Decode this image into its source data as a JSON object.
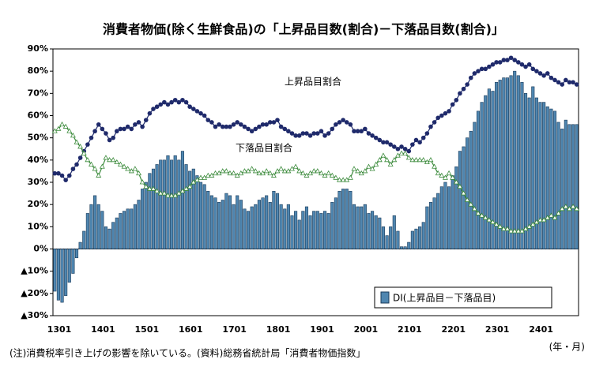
{
  "chart_data": {
    "type": "bar-line",
    "title": "消費者物価(除く生鮮食品)の「上昇品目数(割合)－下落品目数(割合)」",
    "note": "(注)消費税率引き上げの影響を除いている。(資料)総務省統計局「消費者物価指数」",
    "x_label": "(年・月)",
    "categories": [
      "1301",
      null,
      null,
      null,
      null,
      null,
      null,
      null,
      null,
      null,
      null,
      null,
      "1401",
      null,
      null,
      null,
      null,
      null,
      null,
      null,
      null,
      null,
      null,
      null,
      "1501",
      null,
      null,
      null,
      null,
      null,
      null,
      null,
      null,
      null,
      null,
      null,
      "1601",
      null,
      null,
      null,
      null,
      null,
      null,
      null,
      null,
      null,
      null,
      null,
      "1701",
      null,
      null,
      null,
      null,
      null,
      null,
      null,
      null,
      null,
      null,
      null,
      "1801",
      null,
      null,
      null,
      null,
      null,
      null,
      null,
      null,
      null,
      null,
      null,
      "1901",
      null,
      null,
      null,
      null,
      null,
      null,
      null,
      null,
      null,
      null,
      null,
      "2001",
      null,
      null,
      null,
      null,
      null,
      null,
      null,
      null,
      null,
      null,
      null,
      "2101",
      null,
      null,
      null,
      null,
      null,
      null,
      null,
      null,
      null,
      null,
      null,
      "2201",
      null,
      null,
      null,
      null,
      null,
      null,
      null,
      null,
      null,
      null,
      null,
      "2301",
      null,
      null,
      null,
      null,
      null,
      null,
      null,
      null,
      null,
      null,
      null,
      "2401",
      null,
      null,
      null,
      null,
      null,
      null,
      null,
      null,
      null,
      null,
      null
    ],
    "series": [
      {
        "name": "DI(上昇品目－下落品目)",
        "type": "bar",
        "color": "#4f86b0",
        "values": [
          -19,
          -23,
          -24,
          -21,
          -15,
          -11,
          -4,
          3,
          8,
          16,
          20,
          24,
          20,
          17,
          10,
          9,
          12,
          14,
          16,
          17,
          18,
          18,
          20,
          22,
          27,
          30,
          34,
          36,
          38,
          40,
          40,
          42,
          40,
          42,
          40,
          44,
          38,
          35,
          36,
          33,
          30,
          29,
          26,
          24,
          23,
          21,
          22,
          25,
          24,
          20,
          24,
          22,
          18,
          17,
          19,
          20,
          22,
          23,
          24,
          21,
          26,
          25,
          20,
          18,
          20,
          15,
          17,
          13,
          17,
          19,
          15,
          17,
          17,
          16,
          17,
          16,
          21,
          23,
          26,
          27,
          27,
          26,
          20,
          19,
          19,
          20,
          16,
          17,
          15,
          14,
          10,
          6,
          10,
          15,
          8,
          1,
          1,
          3,
          8,
          9,
          10,
          12,
          19,
          21,
          23,
          25,
          28,
          30,
          28,
          33,
          37,
          44,
          46,
          50,
          53,
          57,
          62,
          66,
          69,
          72,
          71,
          75,
          76,
          77,
          77,
          78,
          80,
          78,
          75,
          70,
          68,
          73,
          68,
          66,
          66,
          64,
          63,
          62,
          57,
          54,
          58,
          56,
          56,
          56
        ]
      },
      {
        "name": "上昇品目割合",
        "type": "line",
        "color": "#1f2a6b",
        "values": [
          34,
          34,
          33,
          31,
          33,
          36,
          38,
          41,
          44,
          47,
          50,
          53,
          56,
          54,
          52,
          49,
          50,
          53,
          54,
          54,
          55,
          54,
          56,
          57,
          55,
          58,
          61,
          63,
          64,
          65,
          66,
          65,
          66,
          67,
          66,
          67,
          66,
          64,
          63,
          62,
          61,
          60,
          58,
          57,
          55,
          56,
          55,
          55,
          55,
          56,
          57,
          56,
          55,
          54,
          53,
          54,
          55,
          56,
          56,
          57,
          57,
          58,
          55,
          54,
          53,
          52,
          51,
          51,
          52,
          52,
          51,
          52,
          52,
          53,
          51,
          52,
          54,
          56,
          57,
          58,
          57,
          56,
          53,
          53,
          53,
          54,
          52,
          51,
          50,
          49,
          48,
          48,
          47,
          46,
          45,
          46,
          45,
          44,
          47,
          49,
          48,
          50,
          52,
          55,
          57,
          59,
          60,
          61,
          62,
          65,
          67,
          70,
          72,
          74,
          77,
          79,
          80,
          81,
          81,
          82,
          83,
          84,
          84,
          85,
          85,
          86,
          85,
          84,
          83,
          82,
          83,
          81,
          80,
          79,
          78,
          79,
          77,
          76,
          75,
          74,
          76,
          75,
          75,
          74
        ]
      },
      {
        "name": "下落品目割合",
        "type": "line",
        "color": "#3b8a3b",
        "values": [
          53,
          54,
          56,
          55,
          53,
          51,
          48,
          46,
          43,
          40,
          38,
          36,
          33,
          37,
          41,
          40,
          40,
          39,
          38,
          37,
          36,
          35,
          36,
          34,
          30,
          28,
          27,
          27,
          26,
          25,
          25,
          24,
          24,
          24,
          25,
          26,
          27,
          28,
          30,
          31,
          32,
          32,
          33,
          33,
          34,
          34,
          35,
          35,
          34,
          34,
          33,
          34,
          35,
          35,
          36,
          35,
          34,
          34,
          35,
          34,
          33,
          35,
          36,
          35,
          35,
          36,
          37,
          35,
          34,
          33,
          34,
          35,
          35,
          34,
          33,
          34,
          33,
          32,
          31,
          31,
          31,
          32,
          36,
          35,
          34,
          35,
          37,
          36,
          38,
          40,
          42,
          40,
          38,
          40,
          42,
          43,
          43,
          41,
          40,
          40,
          40,
          40,
          39,
          40,
          37,
          34,
          33,
          32,
          34,
          32,
          30,
          28,
          25,
          22,
          20,
          18,
          16,
          15,
          14,
          13,
          12,
          11,
          10,
          9,
          9,
          8,
          8,
          8,
          8,
          9,
          10,
          11,
          12,
          13,
          13,
          14,
          15,
          14,
          16,
          18,
          19,
          18,
          19,
          18
        ]
      }
    ],
    "ylim": [
      -30,
      90
    ],
    "yticks": [
      {
        "value": -30,
        "label": "▲30%"
      },
      {
        "value": -20,
        "label": "▲20%"
      },
      {
        "value": -10,
        "label": "▲10%"
      },
      {
        "value": 0,
        "label": "0%"
      },
      {
        "value": 10,
        "label": "10%"
      },
      {
        "value": 20,
        "label": "20%"
      },
      {
        "value": 30,
        "label": "30%"
      },
      {
        "value": 40,
        "label": "40%"
      },
      {
        "value": 50,
        "label": "50%"
      },
      {
        "value": 60,
        "label": "60%"
      },
      {
        "value": 70,
        "label": "70%"
      },
      {
        "value": 80,
        "label": "80%"
      },
      {
        "value": 90,
        "label": "90%"
      }
    ],
    "grid": false
  }
}
